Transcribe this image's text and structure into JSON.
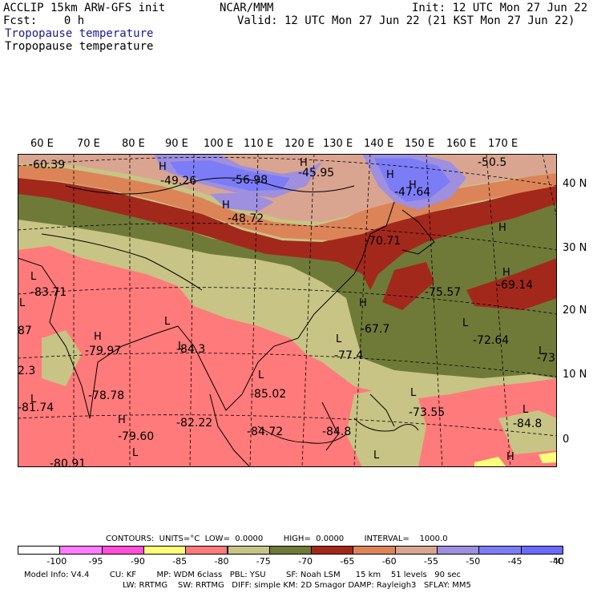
{
  "header": {
    "model": "ACCLIP 15km ARW-GFS init",
    "fcst": "Fcst:    0 h",
    "center": "NCAR/MMM",
    "init": "Init: 12 UTC Mon 27 Jun 22",
    "valid": "Valid: 12 UTC Mon 27 Jun 22 (21 KST Mon 27 Jun 22)",
    "field_title_blue": "Tropopause temperature",
    "field_title_black": "Tropopause temperature"
  },
  "axes": {
    "longitudes": [
      "60 E",
      "70 E",
      "80 E",
      "90 E",
      "100 E",
      "110 E",
      "120 E",
      "130 E",
      "140 E",
      "150 E",
      "160 E",
      "170 E"
    ],
    "latitudes": [
      "40 N",
      "30 N",
      "20 N",
      "10 N",
      "0"
    ]
  },
  "map": {
    "labels": [
      {
        "t": "-60.39"
      },
      {
        "t": "-49.26"
      },
      {
        "t": "-56.98"
      },
      {
        "t": "-45.95"
      },
      {
        "t": "-50.5"
      },
      {
        "t": "-47.64"
      },
      {
        "t": "-48.72"
      },
      {
        "t": "-70.71"
      },
      {
        "t": "-83.71"
      },
      {
        "t": "-75.57"
      },
      {
        "t": "-69.14"
      },
      {
        "t": "-67.7"
      },
      {
        "t": "-79.97"
      },
      {
        "t": "-84.3"
      },
      {
        "t": "-77.4"
      },
      {
        "t": "-72.64"
      },
      {
        "t": "-73"
      },
      {
        "t": "-78.78"
      },
      {
        "t": "-85.02"
      },
      {
        "t": "-81.74"
      },
      {
        "t": "-82.22"
      },
      {
        "t": "-84.72"
      },
      {
        "t": "-84.8"
      },
      {
        "t": "-73.55"
      },
      {
        "t": "-84.8"
      },
      {
        "t": "-79.60"
      },
      {
        "t": "-80.91"
      },
      {
        "t": "87"
      },
      {
        "t": "2.3"
      }
    ],
    "highs_lows": [
      "H",
      "H",
      "H",
      "H",
      "H",
      "H",
      "H",
      "H",
      "H",
      "H",
      "H",
      "L",
      "L",
      "L",
      "L",
      "L",
      "L",
      "L",
      "L",
      "L",
      "L",
      "L",
      "L",
      "L"
    ]
  },
  "contours": {
    "line": "CONTOURS:  UNITS=°C  LOW=  0.0000        HIGH=  0.0000        INTERVAL=    1000.0"
  },
  "colorbar": {
    "unit": "°C",
    "colors": [
      "#ffffff",
      "#ff7bff",
      "#ff4fd6",
      "#ffff7a",
      "#ff7a7a",
      "#c7c485",
      "#6f7a38",
      "#a3281c",
      "#dc8458",
      "#d9a591",
      "#9e8fdf",
      "#7c7cf7",
      "#6b6bff"
    ],
    "labels": [
      "-100",
      "-95",
      "-90",
      "-85",
      "-80",
      "-75",
      "-70",
      "-65",
      "-60",
      "-55",
      "-50",
      "-45",
      "-40"
    ]
  },
  "footer": {
    "line1": "Model Info: V4.4        CU: KF        MP: WDM 6class   PBL: YSU        SF: Noah LSM      15 km    51 levels   90 sec",
    "line2": "LW: RRTMG    SW: RRTMG   DIFF: simple KM: 2D Smagor DAMP: Rayleigh3   SFLAY: MM5"
  }
}
